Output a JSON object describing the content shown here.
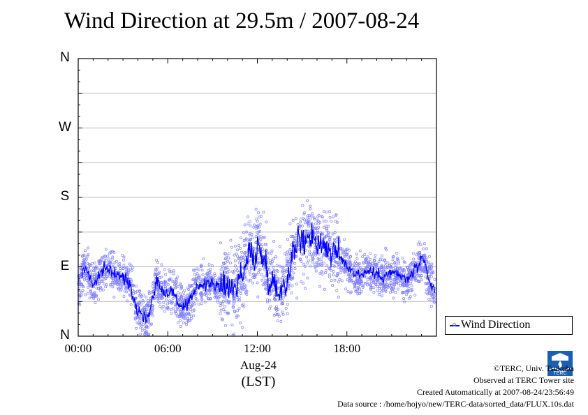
{
  "chart_data": {
    "type": "scatter",
    "title": "Wind Direction at 29.5m / 2007-08-24",
    "xlabel": "(LST)",
    "date_label": "Aug-24",
    "x_ticks": [
      "00:00",
      "06:00",
      "12:00",
      "18:00"
    ],
    "x_tick_hours": [
      0,
      6,
      12,
      18
    ],
    "xlim_hours": [
      0,
      24
    ],
    "y_ticks": [
      "N",
      "E",
      "S",
      "W",
      "N"
    ],
    "y_tick_degrees": [
      0,
      90,
      180,
      270,
      360
    ],
    "ylim_degrees": [
      0,
      360
    ],
    "grid": "horizontal",
    "legend": {
      "position": "right",
      "entries": [
        {
          "name": "Wind Direction",
          "color": "#0000ff"
        }
      ]
    },
    "scatter_color": "#7b7bff",
    "line_color": "#0000ff",
    "series": [
      {
        "name": "Wind Direction",
        "hours": [
          0.0,
          0.25,
          0.5,
          0.75,
          1.0,
          1.5,
          2.0,
          2.5,
          3.0,
          3.5,
          3.75,
          4.0,
          4.25,
          4.5,
          4.75,
          5.0,
          5.25,
          5.5,
          6.0,
          6.25,
          6.5,
          6.75,
          7.0,
          7.25,
          7.5,
          7.75,
          8.0,
          8.5,
          9.0,
          9.5,
          10.0,
          10.5,
          10.75,
          11.0,
          11.25,
          11.5,
          11.75,
          12.0,
          12.25,
          12.5,
          12.75,
          13.0,
          13.5,
          14.0,
          14.25,
          14.5,
          14.75,
          15.0,
          15.25,
          15.5,
          15.75,
          16.0,
          16.5,
          17.0,
          17.5,
          18.0,
          18.5,
          19.0,
          19.5,
          20.0,
          20.5,
          21.0,
          21.5,
          22.0,
          22.25,
          22.5,
          22.75,
          23.0,
          23.25,
          23.5,
          23.75
        ],
        "degrees": [
          60,
          80,
          90,
          78,
          65,
          82,
          88,
          80,
          76,
          68,
          45,
          35,
          30,
          22,
          30,
          50,
          75,
          62,
          55,
          60,
          52,
          42,
          35,
          38,
          45,
          58,
          68,
          65,
          70,
          60,
          70,
          58,
          80,
          75,
          95,
          110,
          100,
          115,
          108,
          95,
          80,
          68,
          60,
          70,
          105,
          110,
          130,
          120,
          124,
          135,
          128,
          122,
          118,
          108,
          104,
          92,
          82,
          80,
          85,
          80,
          78,
          82,
          80,
          72,
          78,
          85,
          90,
          98,
          92,
          70,
          62
        ]
      }
    ]
  },
  "credits": {
    "copyright": "©TERC, Univ. Tsukuba",
    "observed": "Observed at TERC Tower site",
    "created": "Created Automatically at 2007-08-24/23:56:49",
    "source": "Data source : /home/hojyo/new/TERC-data/sorted_data/FLUX.10s.dat",
    "logo_text": "TERC"
  }
}
